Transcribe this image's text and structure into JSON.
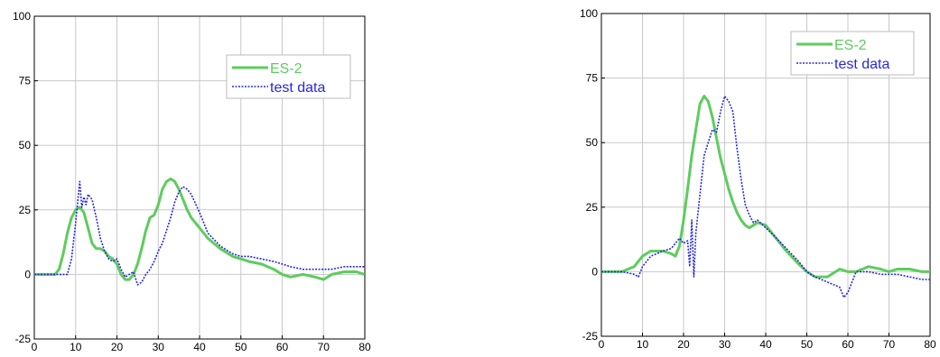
{
  "chart_data": [
    {
      "type": "line",
      "xlim": [
        0,
        80
      ],
      "ylim": [
        -25,
        100
      ],
      "xticks": [
        "0",
        "10",
        "20",
        "30",
        "40",
        "50",
        "60",
        "70",
        "80"
      ],
      "yticks": [
        "-25",
        "0",
        "25",
        "50",
        "75",
        "100"
      ],
      "grid": true,
      "legend_position": "top-right",
      "series": [
        {
          "name": "ES-2",
          "color": "#5dcc5d",
          "style": "solid",
          "x": [
            0,
            5,
            6,
            7,
            8,
            9,
            10,
            11,
            12,
            13,
            14,
            15,
            16,
            17,
            18,
            19,
            20,
            21,
            22,
            23,
            24,
            25,
            26,
            27,
            28,
            29,
            30,
            31,
            32,
            33,
            34,
            35,
            36,
            37,
            38,
            40,
            42,
            45,
            48,
            50,
            52,
            55,
            58,
            60,
            62,
            65,
            68,
            70,
            72,
            75,
            78,
            80
          ],
          "y": [
            0,
            0,
            2,
            8,
            16,
            22,
            25,
            26,
            24,
            18,
            12,
            10,
            10,
            9,
            7,
            6,
            4,
            0,
            -2,
            -2,
            0,
            4,
            10,
            17,
            22,
            23,
            27,
            33,
            36,
            37,
            36,
            33,
            29,
            25,
            22,
            18,
            14,
            10,
            7,
            6,
            5,
            4,
            2,
            0,
            -1,
            0,
            -1,
            -2,
            0,
            1,
            1,
            0
          ]
        },
        {
          "name": "test data",
          "color": "#2828dd",
          "style": "dotted",
          "x": [
            0,
            8,
            9,
            10,
            10.5,
            11,
            11.5,
            12,
            12.5,
            13,
            14,
            15,
            16,
            17,
            18,
            19,
            20,
            21,
            22,
            23,
            24,
            25,
            26,
            27,
            28,
            29,
            30,
            31,
            32,
            33,
            34,
            35,
            36,
            37,
            38,
            40,
            42,
            45,
            48,
            50,
            52,
            55,
            58,
            60,
            62,
            65,
            68,
            70,
            72,
            75,
            78,
            80
          ],
          "y": [
            0,
            0,
            6,
            20,
            28,
            36,
            26,
            30,
            27,
            31,
            29,
            22,
            14,
            9,
            6,
            5,
            6,
            2,
            -1,
            0,
            1,
            -4,
            -3,
            0,
            2,
            5,
            9,
            12,
            17,
            22,
            28,
            32,
            34,
            33,
            31,
            24,
            16,
            11,
            8,
            7,
            7,
            6,
            5,
            4,
            3,
            2,
            2,
            2,
            2,
            3,
            3,
            3
          ]
        }
      ]
    },
    {
      "type": "line",
      "xlim": [
        0,
        80
      ],
      "ylim": [
        -25,
        100
      ],
      "xticks": [
        "0",
        "10",
        "20",
        "30",
        "40",
        "50",
        "60",
        "70",
        "80"
      ],
      "yticks": [
        "-25",
        "0",
        "25",
        "50",
        "75",
        "100"
      ],
      "grid": true,
      "legend_position": "top-right",
      "series": [
        {
          "name": "ES-2",
          "color": "#5dcc5d",
          "style": "solid",
          "x": [
            0,
            5,
            8,
            10,
            12,
            15,
            17,
            18,
            19,
            20,
            21,
            22,
            23,
            24,
            25,
            26,
            27,
            28,
            29,
            30,
            31,
            32,
            33,
            34,
            35,
            36,
            37,
            38,
            40,
            42,
            45,
            48,
            50,
            52,
            55,
            58,
            60,
            62,
            65,
            68,
            70,
            72,
            75,
            78,
            80
          ],
          "y": [
            0,
            0,
            2,
            6,
            8,
            8,
            7,
            6,
            10,
            20,
            32,
            45,
            55,
            65,
            68,
            66,
            60,
            52,
            44,
            38,
            32,
            27,
            23,
            20,
            18,
            17,
            18,
            19,
            18,
            14,
            8,
            3,
            0,
            -2,
            -2,
            1,
            0,
            0,
            2,
            1,
            0,
            1,
            1,
            0,
            0
          ]
        },
        {
          "name": "test data",
          "color": "#2828dd",
          "style": "dotted",
          "x": [
            0,
            5,
            8,
            9,
            10,
            12,
            15,
            17,
            18,
            19,
            20,
            21,
            21.5,
            22,
            22.5,
            23,
            24,
            25,
            26,
            27,
            28,
            29,
            30,
            31,
            32,
            33,
            34,
            35,
            36,
            37,
            38,
            40,
            42,
            45,
            48,
            50,
            52,
            55,
            58,
            59,
            60,
            62,
            65,
            68,
            70,
            72,
            75,
            78,
            80
          ],
          "y": [
            0,
            0,
            -1,
            -2,
            2,
            6,
            8,
            9,
            11,
            13,
            11,
            12,
            2,
            20,
            -2,
            15,
            30,
            45,
            50,
            55,
            54,
            62,
            68,
            66,
            62,
            48,
            36,
            26,
            22,
            19,
            20,
            17,
            14,
            9,
            4,
            0,
            -2,
            -4,
            -6,
            -10,
            -8,
            0,
            0,
            -1,
            -1,
            -1,
            -2,
            -3,
            -3
          ]
        }
      ]
    }
  ]
}
